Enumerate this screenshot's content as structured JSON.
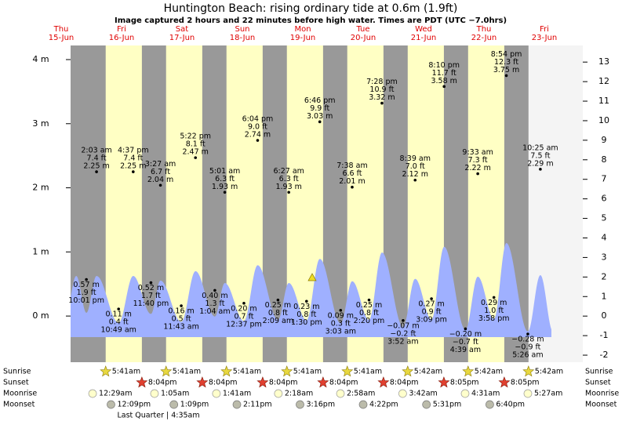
{
  "chart_data": {
    "type": "tide",
    "title": "Huntington Beach: rising  ordinary tide at 0.6m (1.9ft)",
    "subtitle": "Image captured 2 hours and 22 minutes before high water. Times are PDT (UTC −7.0hrs)",
    "ylim": [
      -0.72,
      4.22
    ],
    "yticks": [
      {
        "value": 0,
        "label": "0 m"
      },
      {
        "value": 1,
        "label": "1 m"
      },
      {
        "value": 2,
        "label": "2 m"
      },
      {
        "value": 3,
        "label": "3 m"
      },
      {
        "value": 4,
        "label": "4 m"
      }
    ],
    "y2lim": [
      -2.36,
      13.85
    ],
    "y2ticks": [
      -2,
      -1,
      0,
      1,
      2,
      3,
      4,
      5,
      6,
      7,
      8,
      9,
      10,
      11,
      12,
      13
    ],
    "row_labels": {
      "sunrise": "Sunrise",
      "sunset": "Sunset",
      "moonrise": "Moonrise",
      "moonset": "Moonset"
    },
    "days": [
      {
        "weekday": "Thu",
        "date": "15-Jun",
        "tides": [
          {
            "time": "10:01 pm",
            "value": 0.57,
            "value_label": "0.57 m",
            "ft": "1.9 ft"
          }
        ]
      },
      {
        "weekday": "Fri",
        "date": "16-Jun",
        "sunrise": "5:41am",
        "sunset": "8:04pm",
        "moonrise": "12:29am",
        "moonset": "12:09pm",
        "moon_phase": "Last Quarter | 4:35am",
        "tides": [
          {
            "time": "2:03 am",
            "value": 2.25,
            "value_label": "2.25 m",
            "ft": "7.4 ft"
          },
          {
            "time": "10:49 am",
            "value": 0.11,
            "value_label": "0.11 m",
            "ft": "0.4 ft"
          },
          {
            "time": "4:37 pm",
            "value": 2.25,
            "value_label": "2.25 m",
            "ft": "7.4 ft"
          },
          {
            "time": "11:40 pm",
            "value": 0.52,
            "value_label": "0.52 m",
            "ft": "1.7 ft"
          }
        ]
      },
      {
        "weekday": "Sat",
        "date": "17-Jun",
        "sunrise": "5:41am",
        "sunset": "8:04pm",
        "moonrise": "1:05am",
        "moonset": "1:09pm",
        "tides": [
          {
            "time": "3:27 am",
            "value": 2.04,
            "value_label": "2.04 m",
            "ft": "6.7 ft"
          },
          {
            "time": "11:43 am",
            "value": 0.16,
            "value_label": "0.16 m",
            "ft": "0.5 ft"
          },
          {
            "time": "5:22 pm",
            "value": 2.47,
            "value_label": "2.47 m",
            "ft": "8.1 ft"
          }
        ]
      },
      {
        "weekday": "Sun",
        "date": "18-Jun",
        "sunrise": "5:41am",
        "sunset": "8:04pm",
        "moonrise": "1:41am",
        "moonset": "2:11pm",
        "tides": [
          {
            "time": "1:04 am",
            "value": 0.4,
            "value_label": "0.40 m",
            "ft": "1.3 ft"
          },
          {
            "time": "5:01 am",
            "value": 1.93,
            "value_label": "1.93 m",
            "ft": "6.3 ft"
          },
          {
            "time": "12:37 pm",
            "value": 0.2,
            "value_label": "0.20 m",
            "ft": "0.7 ft"
          },
          {
            "time": "6:04 pm",
            "value": 2.74,
            "value_label": "2.74 m",
            "ft": "9.0 ft"
          }
        ]
      },
      {
        "weekday": "Mon",
        "date": "19-Jun",
        "sunrise": "5:41am",
        "sunset": "8:04pm",
        "moonrise": "2:18am",
        "moonset": "3:16pm",
        "tides": [
          {
            "time": "2:09 am",
            "value": 0.25,
            "value_label": "0.25 m",
            "ft": "0.8 ft"
          },
          {
            "time": "6:27 am",
            "value": 1.93,
            "value_label": "1.93 m",
            "ft": "6.3 ft"
          },
          {
            "time": "1:30 pm",
            "value": 0.23,
            "value_label": "0.23 m",
            "ft": "0.8 ft"
          },
          {
            "time": "6:46 pm",
            "value": 3.03,
            "value_label": "3.03 m",
            "ft": "9.9 ft"
          }
        ]
      },
      {
        "weekday": "Tue",
        "date": "20-Jun",
        "sunrise": "5:41am",
        "sunset": "8:04pm",
        "moonrise": "2:58am",
        "moonset": "4:22pm",
        "tides": [
          {
            "time": "3:03 am",
            "value": 0.09,
            "value_label": "0.09 m",
            "ft": "0.3 ft"
          },
          {
            "time": "7:38 am",
            "value": 2.01,
            "value_label": "2.01 m",
            "ft": "6.6 ft"
          },
          {
            "time": "2:20 pm",
            "value": 0.25,
            "value_label": "0.25 m",
            "ft": "0.8 ft"
          },
          {
            "time": "7:28 pm",
            "value": 3.32,
            "value_label": "3.32 m",
            "ft": "10.9 ft"
          }
        ]
      },
      {
        "weekday": "Wed",
        "date": "21-Jun",
        "sunrise": "5:42am",
        "sunset": "8:05pm",
        "moonrise": "3:42am",
        "moonset": "5:31pm",
        "tides": [
          {
            "time": "3:52 am",
            "value": -0.07,
            "value_label": "−0.07 m",
            "ft": "−0.2 ft"
          },
          {
            "time": "8:39 am",
            "value": 2.12,
            "value_label": "2.12 m",
            "ft": "7.0 ft"
          },
          {
            "time": "3:09 pm",
            "value": 0.27,
            "value_label": "0.27 m",
            "ft": "0.9 ft"
          },
          {
            "time": "8:10 pm",
            "value": 3.58,
            "value_label": "3.58 m",
            "ft": "11.7 ft"
          }
        ]
      },
      {
        "weekday": "Thu",
        "date": "22-Jun",
        "sunrise": "5:42am",
        "sunset": "8:05pm",
        "moonrise": "4:31am",
        "moonset": "6:40pm",
        "tides": [
          {
            "time": "4:39 am",
            "value": -0.2,
            "value_label": "−0.20 m",
            "ft": "−0.7 ft"
          },
          {
            "time": "9:33 am",
            "value": 2.22,
            "value_label": "2.22 m",
            "ft": "7.3 ft"
          },
          {
            "time": "3:58 pm",
            "value": 0.29,
            "value_label": "0.29 m",
            "ft": "1.0 ft"
          },
          {
            "time": "8:54 pm",
            "value": 3.75,
            "value_label": "3.75 m",
            "ft": "12.3 ft"
          }
        ]
      },
      {
        "weekday": "Fri",
        "date": "23-Jun",
        "sunrise": "5:42am",
        "moonrise": "5:27am",
        "tides": [
          {
            "time": "5:26 am",
            "value": -0.28,
            "value_label": "−0.28 m",
            "ft": "−0.9 ft"
          },
          {
            "time": "10:25 am",
            "value": 2.29,
            "value_label": "2.29 m",
            "ft": "7.5 ft"
          }
        ]
      }
    ]
  }
}
